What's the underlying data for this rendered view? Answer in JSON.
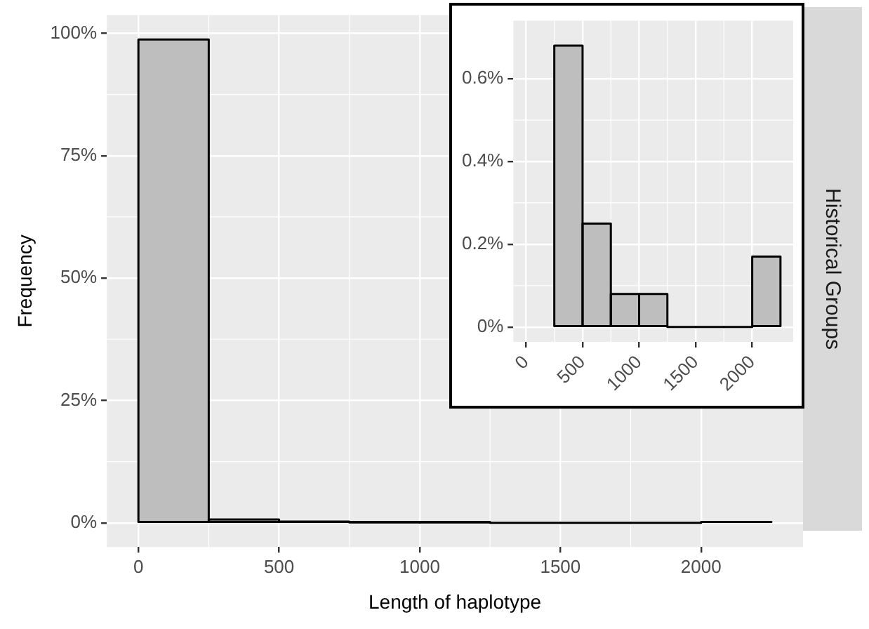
{
  "chart_data": [
    {
      "type": "histogram",
      "xlabel": "Length of haplotype",
      "ylabel": "Frequency",
      "annotations": [
        "Historical Groups"
      ],
      "bins": [
        0,
        250,
        500,
        750,
        1000,
        1250,
        1500,
        1750,
        2000,
        2250
      ],
      "values": [
        98.74,
        0.68,
        0.25,
        0.08,
        0.08,
        0,
        0,
        0,
        0.17
      ],
      "color": "#bebebe",
      "xlim": [
        -112.5,
        2362.5
      ],
      "xticks": [
        0,
        500,
        1000,
        1500,
        2000
      ],
      "ylim": [
        -4.94,
        103.7
      ],
      "yticks": [
        {
          "value": 0,
          "label": "0%"
        },
        {
          "value": 25,
          "label": "25%"
        },
        {
          "value": 50,
          "label": "50%"
        },
        {
          "value": 75,
          "label": "75%"
        },
        {
          "value": 100,
          "label": "100%"
        }
      ],
      "grid": true
    },
    {
      "type": "histogram",
      "bins": [
        250,
        500,
        750,
        1000,
        1250,
        1500,
        1750,
        2000,
        2250
      ],
      "values": [
        0.68,
        0.25,
        0.08,
        0.08,
        0,
        0,
        0,
        0.17
      ],
      "color": "#bebebe",
      "xlim": [
        -112.5,
        2362.5
      ],
      "xticks": [
        0,
        500,
        1000,
        1500,
        2000
      ],
      "ylim": [
        -0.036,
        0.74
      ],
      "yticks": [
        {
          "value": 0,
          "label": "0%"
        },
        {
          "value": 0.2,
          "label": "0.2%"
        },
        {
          "value": 0.4,
          "label": "0.4%"
        },
        {
          "value": 0.6,
          "label": "0.6%"
        }
      ],
      "grid": true
    }
  ]
}
